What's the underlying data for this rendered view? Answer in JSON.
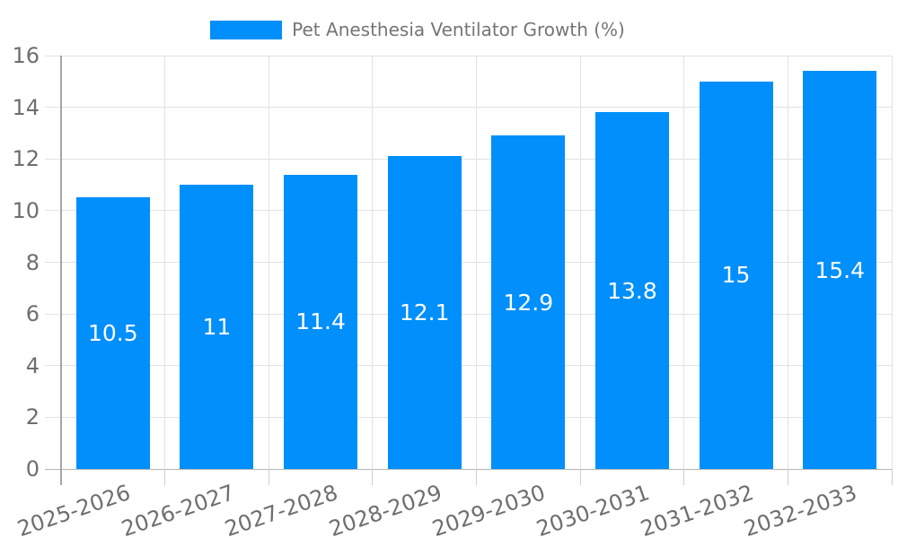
{
  "legend": {
    "label": "Pet Anesthesia Ventilator Growth (%)"
  },
  "chart_data": {
    "type": "bar",
    "title": "Pet Anesthesia Ventilator Growth (%)",
    "categories": [
      "2025-2026",
      "2026-2027",
      "2027-2028",
      "2028-2029",
      "2029-2030",
      "2030-2031",
      "2031-2032",
      "2032-2033"
    ],
    "values": [
      10.5,
      11,
      11.4,
      12.1,
      12.9,
      13.8,
      15,
      15.4
    ],
    "yticks": [
      0,
      2,
      4,
      6,
      8,
      10,
      12,
      14,
      16
    ],
    "ylim": [
      0,
      16
    ],
    "xlabel": "",
    "ylabel": "",
    "grid": true,
    "legend_position": "top",
    "value_labels": "centered-white",
    "colors": {
      "bar": "#008FFB",
      "value_label": "#FFFFFF",
      "axis_text": "#6E6E6E",
      "legend_text": "#757575",
      "gridline": "#E2E2E2",
      "baseline": "#B5B5B5",
      "axis_line": "#A6A6A6",
      "tick": "#CFCFCF",
      "background": "#FFFFFF"
    }
  }
}
